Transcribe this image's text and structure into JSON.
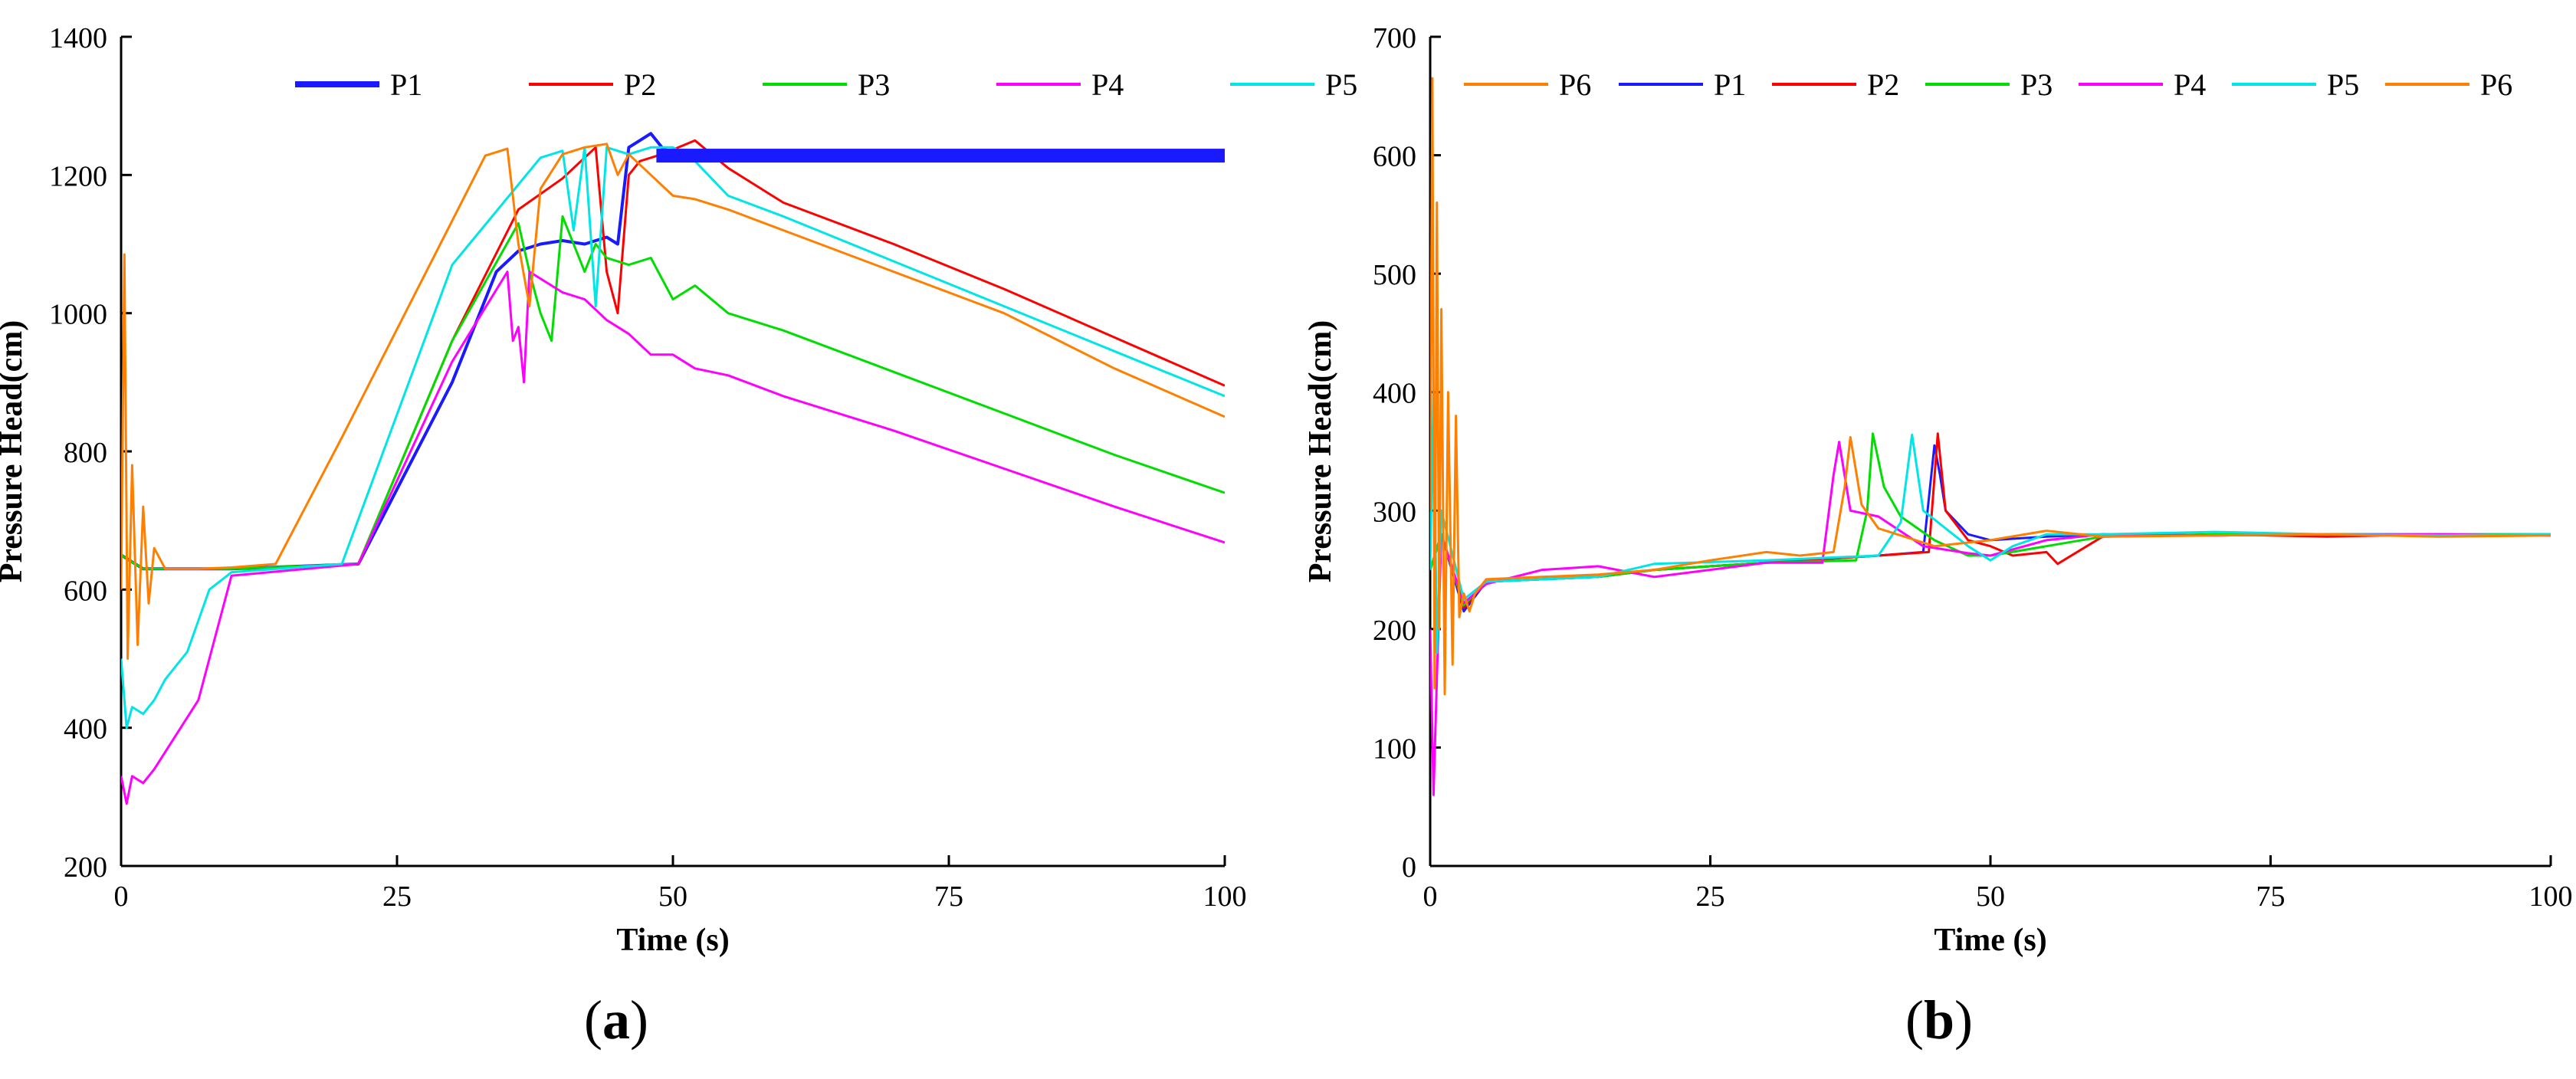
{
  "figure": {
    "panels": [
      {
        "label": "a"
      },
      {
        "label": "b"
      }
    ]
  },
  "chart_data": [
    {
      "type": "line",
      "panel_label": "a",
      "xlabel": "Time (s)",
      "ylabel": "Pressure Head(cm)",
      "xlim": [
        0,
        100
      ],
      "ylim": [
        200,
        1400
      ],
      "xticks": [
        0,
        25,
        50,
        75,
        100
      ],
      "yticks": [
        200,
        400,
        600,
        800,
        1000,
        1200,
        1400
      ],
      "grid": false,
      "legend": "top, horizontal",
      "series": [
        {
          "name": "P1",
          "color": "#1a1aff",
          "x": [
            0,
            2,
            5,
            8,
            10,
            21.5,
            30,
            34,
            36,
            38,
            40,
            42,
            44,
            45,
            46,
            47,
            48,
            49,
            50,
            60,
            70,
            80,
            90,
            100
          ],
          "y": [
            650,
            630,
            630,
            630,
            630,
            637,
            900,
            1060,
            1090,
            1100,
            1105,
            1100,
            1110,
            1100,
            1240,
            1250,
            1260,
            1240,
            1230,
            1230,
            1230,
            1230,
            1230,
            1230
          ]
        },
        {
          "name": "P2",
          "color": "#ff0000",
          "x": [
            0,
            2,
            5,
            8,
            10,
            21.5,
            30,
            36,
            40,
            43,
            44,
            45,
            46,
            47,
            49,
            52,
            55,
            58,
            60,
            70,
            80,
            90,
            100
          ],
          "y": [
            650,
            630,
            630,
            630,
            630,
            637,
            960,
            1150,
            1195,
            1240,
            1060,
            1000,
            1200,
            1220,
            1230,
            1250,
            1210,
            1180,
            1160,
            1100,
            1035,
            965,
            895
          ]
        },
        {
          "name": "P3",
          "color": "#00dd00",
          "x": [
            0,
            2,
            5,
            8,
            10,
            21.5,
            30,
            36,
            37,
            38,
            39,
            40,
            41,
            42,
            43,
            44,
            46,
            48,
            50,
            52,
            55,
            60,
            70,
            80,
            90,
            100
          ],
          "y": [
            650,
            630,
            630,
            630,
            630,
            637,
            960,
            1130,
            1060,
            1000,
            960,
            1140,
            1100,
            1060,
            1100,
            1080,
            1070,
            1080,
            1020,
            1040,
            1000,
            975,
            915,
            855,
            795,
            740
          ]
        },
        {
          "name": "P4",
          "color": "#ff00ff",
          "x": [
            0,
            0.5,
            1,
            2,
            3,
            5,
            7,
            10,
            21.5,
            30,
            35,
            35.5,
            36,
            36.5,
            37,
            38,
            40,
            42,
            44,
            46,
            48,
            50,
            52,
            55,
            60,
            70,
            80,
            90,
            100
          ],
          "y": [
            330,
            290,
            330,
            320,
            340,
            390,
            440,
            620,
            637,
            930,
            1060,
            960,
            980,
            900,
            1060,
            1050,
            1030,
            1020,
            990,
            970,
            940,
            940,
            920,
            910,
            880,
            830,
            775,
            720,
            668
          ]
        },
        {
          "name": "P5",
          "color": "#00e5e5",
          "x": [
            0,
            0.5,
            1,
            2,
            3,
            4,
            6,
            8,
            10,
            20,
            30,
            38,
            40,
            41,
            42,
            43,
            44,
            46,
            48,
            50,
            52,
            55,
            60,
            70,
            80,
            90,
            100
          ],
          "y": [
            500,
            400,
            430,
            420,
            440,
            470,
            510,
            600,
            625,
            637,
            1070,
            1225,
            1235,
            1120,
            1240,
            1010,
            1240,
            1230,
            1240,
            1240,
            1220,
            1170,
            1140,
            1075,
            1010,
            945,
            880
          ]
        },
        {
          "name": "P6",
          "color": "#ff8000",
          "x": [
            0,
            0.3,
            0.6,
            1,
            1.5,
            2,
            2.5,
            3,
            4,
            5,
            7,
            10,
            14,
            20,
            33,
            35,
            36,
            37,
            38,
            40,
            42,
            44,
            45,
            46,
            48,
            50,
            52,
            55,
            60,
            70,
            80,
            90,
            100
          ],
          "y": [
            600,
            1085,
            500,
            780,
            520,
            720,
            580,
            660,
            630,
            630,
            630,
            632,
            637,
            820,
            1228,
            1238,
            1100,
            1010,
            1180,
            1230,
            1240,
            1245,
            1200,
            1230,
            1200,
            1170,
            1165,
            1150,
            1120,
            1060,
            1000,
            920,
            850
          ]
        }
      ]
    },
    {
      "type": "line",
      "panel_label": "b",
      "xlabel": "Time (s)",
      "ylabel": "Pressure Head(cm)",
      "xlim": [
        0,
        100
      ],
      "ylim": [
        0,
        700
      ],
      "xticks": [
        0,
        25,
        50,
        75,
        100
      ],
      "yticks": [
        0,
        100,
        200,
        300,
        400,
        500,
        600,
        700
      ],
      "grid": false,
      "legend": "top, horizontal",
      "series": [
        {
          "name": "P1",
          "color": "#1a1aff",
          "x": [
            0,
            1,
            3,
            5,
            10,
            15,
            20,
            30,
            40,
            44,
            45,
            45.5,
            46,
            48,
            50,
            55,
            60,
            70,
            80,
            90,
            100
          ],
          "y": [
            250,
            280,
            215,
            240,
            242,
            244,
            250,
            256,
            262,
            265,
            355,
            330,
            300,
            280,
            275,
            278,
            280,
            279,
            280,
            280,
            279
          ]
        },
        {
          "name": "P2",
          "color": "#ff0000",
          "x": [
            0,
            1,
            3,
            5,
            10,
            15,
            20,
            30,
            40,
            44.5,
            45.3,
            46,
            48,
            50,
            52,
            55,
            56,
            60,
            70,
            80,
            90,
            100
          ],
          "y": [
            250,
            280,
            218,
            240,
            242,
            244,
            250,
            256,
            262,
            265,
            365,
            300,
            275,
            270,
            262,
            265,
            255,
            278,
            280,
            278,
            280,
            280
          ]
        },
        {
          "name": "P3",
          "color": "#00dd00",
          "x": [
            0,
            1,
            3,
            5,
            10,
            15,
            20,
            30,
            38,
            39,
            39.5,
            40.5,
            42,
            45,
            48,
            50,
            55,
            60,
            70,
            80,
            90,
            100
          ],
          "y": [
            250,
            280,
            220,
            240,
            242,
            244,
            250,
            256,
            258,
            300,
            365,
            320,
            295,
            275,
            262,
            262,
            270,
            278,
            280,
            280,
            280,
            280
          ]
        },
        {
          "name": "P4",
          "color": "#ff00ff",
          "x": [
            0,
            0.3,
            0.6,
            1,
            3,
            5,
            10,
            15,
            20,
            30,
            35,
            36,
            36.5,
            37.5,
            40,
            44,
            48,
            50,
            55,
            60,
            70,
            80,
            90,
            100
          ],
          "y": [
            200,
            60,
            160,
            280,
            222,
            238,
            250,
            253,
            244,
            256,
            256,
            330,
            358,
            300,
            295,
            270,
            264,
            262,
            275,
            280,
            279,
            280,
            280,
            279
          ]
        },
        {
          "name": "P5",
          "color": "#00e5e5",
          "x": [
            0,
            0.3,
            0.6,
            1,
            3,
            5,
            10,
            15,
            20,
            30,
            40,
            42,
            43,
            44,
            46,
            48,
            50,
            52,
            55,
            60,
            70,
            80,
            90,
            100
          ],
          "y": [
            250,
            400,
            180,
            300,
            225,
            240,
            242,
            244,
            255,
            258,
            262,
            290,
            364,
            300,
            285,
            270,
            258,
            270,
            280,
            280,
            282,
            280,
            279,
            280
          ]
        },
        {
          "name": "P6",
          "color": "#ff8000",
          "x": [
            0,
            0.2,
            0.4,
            0.6,
            0.8,
            1,
            1.3,
            1.6,
            2,
            2.3,
            2.6,
            3,
            3.5,
            4,
            5,
            10,
            15,
            20,
            25,
            30,
            33,
            36,
            37,
            37.5,
            38.5,
            40,
            45,
            50,
            55,
            60,
            70,
            80,
            90,
            100
          ],
          "y": [
            300,
            665,
            150,
            560,
            200,
            470,
            145,
            400,
            170,
            380,
            210,
            230,
            215,
            230,
            242,
            244,
            246,
            250,
            258,
            265,
            262,
            265,
            320,
            362,
            305,
            285,
            270,
            275,
            283,
            278,
            279,
            280,
            278,
            279
          ]
        }
      ]
    }
  ]
}
